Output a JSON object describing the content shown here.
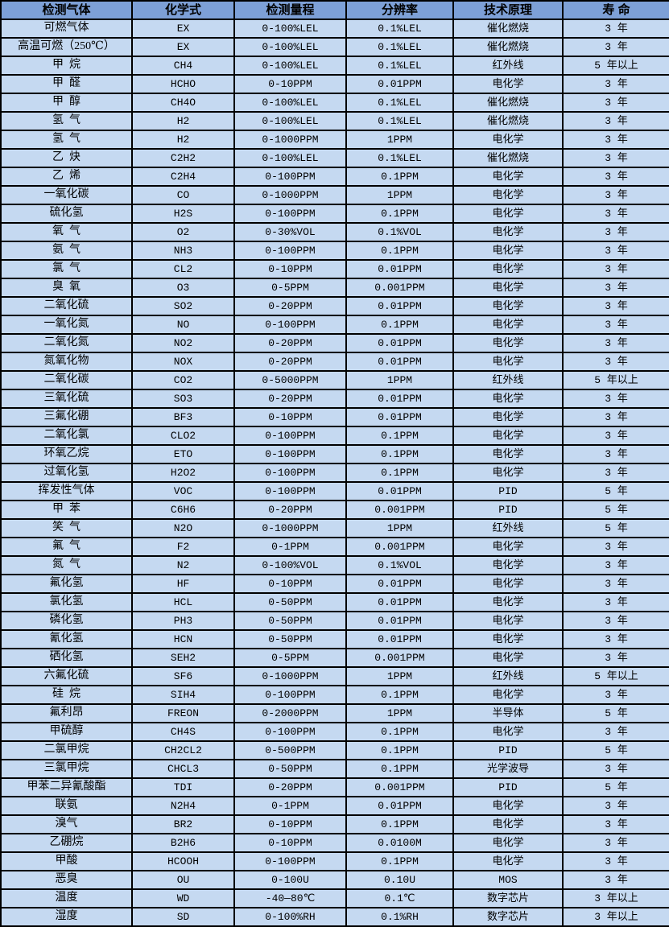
{
  "colors": {
    "header_bg": "#7da0d7",
    "row_bg": "#c5d9f1",
    "border": "#000000",
    "text": "#000000"
  },
  "chart_data": {
    "type": "table",
    "title": "",
    "columns": [
      "检测气体",
      "化学式",
      "检测量程",
      "分辨率",
      "技术原理",
      "寿 命"
    ],
    "rows": [
      [
        "可燃气体",
        "EX",
        "0-100%LEL",
        "0.1%LEL",
        "催化燃烧",
        "3 年"
      ],
      [
        "高温可燃（250℃）",
        "EX",
        "0-100%LEL",
        "0.1%LEL",
        "催化燃烧",
        "3 年"
      ],
      [
        "甲  烷",
        "CH4",
        "0-100%LEL",
        "0.1%LEL",
        "红外线",
        "5 年以上"
      ],
      [
        "甲  醛",
        "HCHO",
        "0-10PPM",
        "0.01PPM",
        "电化学",
        "3 年"
      ],
      [
        "甲  醇",
        "CH4O",
        "0-100%LEL",
        "0.1%LEL",
        "催化燃烧",
        "3 年"
      ],
      [
        "氢  气",
        "H2",
        "0-100%LEL",
        "0.1%LEL",
        "催化燃烧",
        "3 年"
      ],
      [
        "氢  气",
        "H2",
        "0-1000PPM",
        "1PPM",
        "电化学",
        "3 年"
      ],
      [
        "乙  炔",
        "C2H2",
        "0-100%LEL",
        "0.1%LEL",
        "催化燃烧",
        "3 年"
      ],
      [
        "乙  烯",
        "C2H4",
        "0-100PPM",
        "0.1PPM",
        "电化学",
        "3 年"
      ],
      [
        "一氧化碳",
        "CO",
        "0-1000PPM",
        "1PPM",
        "电化学",
        "3 年"
      ],
      [
        "硫化氢",
        "H2S",
        "0-100PPM",
        "0.1PPM",
        "电化学",
        "3 年"
      ],
      [
        "氧  气",
        "O2",
        "0-30%VOL",
        "0.1%VOL",
        "电化学",
        "3 年"
      ],
      [
        "氨  气",
        "NH3",
        "0-100PPM",
        "0.1PPM",
        "电化学",
        "3 年"
      ],
      [
        "氯  气",
        "CL2",
        "0-10PPM",
        "0.01PPM",
        "电化学",
        "3 年"
      ],
      [
        "臭  氧",
        "O3",
        "0-5PPM",
        "0.001PPM",
        "电化学",
        "3 年"
      ],
      [
        "二氧化硫",
        "SO2",
        "0-20PPM",
        "0.01PPM",
        "电化学",
        "3 年"
      ],
      [
        "一氧化氮",
        "NO",
        "0-100PPM",
        "0.1PPM",
        "电化学",
        "3 年"
      ],
      [
        "二氧化氮",
        "NO2",
        "0-20PPM",
        "0.01PPM",
        "电化学",
        "3 年"
      ],
      [
        "氮氧化物",
        "NOX",
        "0-20PPM",
        "0.01PPM",
        "电化学",
        "3 年"
      ],
      [
        "二氧化碳",
        "CO2",
        "0-5000PPM",
        "1PPM",
        "红外线",
        "5 年以上"
      ],
      [
        "三氧化硫",
        "SO3",
        "0-20PPM",
        "0.01PPM",
        "电化学",
        "3 年"
      ],
      [
        "三氟化硼",
        "BF3",
        "0-10PPM",
        "0.01PPM",
        "电化学",
        "3 年"
      ],
      [
        "二氧化氯",
        "CLO2",
        "0-100PPM",
        "0.1PPM",
        "电化学",
        "3 年"
      ],
      [
        "环氧乙烷",
        "ETO",
        "0-100PPM",
        "0.1PPM",
        "电化学",
        "3 年"
      ],
      [
        "过氧化氢",
        "H2O2",
        "0-100PPM",
        "0.1PPM",
        "电化学",
        "3 年"
      ],
      [
        "挥发性气体",
        "VOC",
        "0-100PPM",
        "0.01PPM",
        "PID",
        "5 年"
      ],
      [
        "甲  苯",
        "C6H6",
        "0-20PPM",
        "0.001PPM",
        "PID",
        "5 年"
      ],
      [
        "笑  气",
        "N2O",
        "0-1000PPM",
        "1PPM",
        "红外线",
        "5 年"
      ],
      [
        "氟  气",
        "F2",
        "0-1PPM",
        "0.001PPM",
        "电化学",
        "3 年"
      ],
      [
        "氮  气",
        "N2",
        "0-100%VOL",
        "0.1%VOL",
        "电化学",
        "3 年"
      ],
      [
        "氟化氢",
        "HF",
        "0-10PPM",
        "0.01PPM",
        "电化学",
        "3 年"
      ],
      [
        "氯化氢",
        "HCL",
        "0-50PPM",
        "0.01PPM",
        "电化学",
        "3 年"
      ],
      [
        "磷化氢",
        "PH3",
        "0-50PPM",
        "0.01PPM",
        "电化学",
        "3 年"
      ],
      [
        "氰化氢",
        "HCN",
        "0-50PPM",
        "0.01PPM",
        "电化学",
        "3 年"
      ],
      [
        "硒化氢",
        "SEH2",
        "0-5PPM",
        "0.001PPM",
        "电化学",
        "3 年"
      ],
      [
        "六氟化硫",
        "SF6",
        "0-1000PPM",
        "1PPM",
        "红外线",
        "5 年以上"
      ],
      [
        "硅  烷",
        "SIH4",
        "0-100PPM",
        "0.1PPM",
        "电化学",
        "3 年"
      ],
      [
        "氟利昂",
        "FREON",
        "0-2000PPM",
        "1PPM",
        "半导体",
        "5 年"
      ],
      [
        "甲硫醇",
        "CH4S",
        "0-100PPM",
        "0.1PPM",
        "电化学",
        "3 年"
      ],
      [
        "二氯甲烷",
        "CH2CL2",
        "0-500PPM",
        "0.1PPM",
        "PID",
        "5 年"
      ],
      [
        "三氯甲烷",
        "CHCL3",
        "0-50PPM",
        "0.1PPM",
        "光学波导",
        "3 年"
      ],
      [
        "甲苯二异氰酸酯",
        "TDI",
        "0-20PPM",
        "0.001PPM",
        "PID",
        "5 年"
      ],
      [
        "联氨",
        "N2H4",
        "0-1PPM",
        "0.01PPM",
        "电化学",
        "3 年"
      ],
      [
        "溴气",
        "BR2",
        "0-10PPM",
        "0.1PPM",
        "电化学",
        "3 年"
      ],
      [
        "乙硼烷",
        "B2H6",
        "0-10PPM",
        "0.0100M",
        "电化学",
        "3 年"
      ],
      [
        "甲酸",
        "HCOOH",
        "0-100PPM",
        "0.1PPM",
        "电化学",
        "3 年"
      ],
      [
        "恶臭",
        "OU",
        "0-100U",
        "0.10U",
        "MOS",
        "3 年"
      ],
      [
        "温度",
        "WD",
        "-40—80℃",
        "0.1℃",
        "数字芯片",
        "3 年以上"
      ],
      [
        "湿度",
        "SD",
        "0-100%RH",
        "0.1%RH",
        "数字芯片",
        "3 年以上"
      ]
    ]
  }
}
